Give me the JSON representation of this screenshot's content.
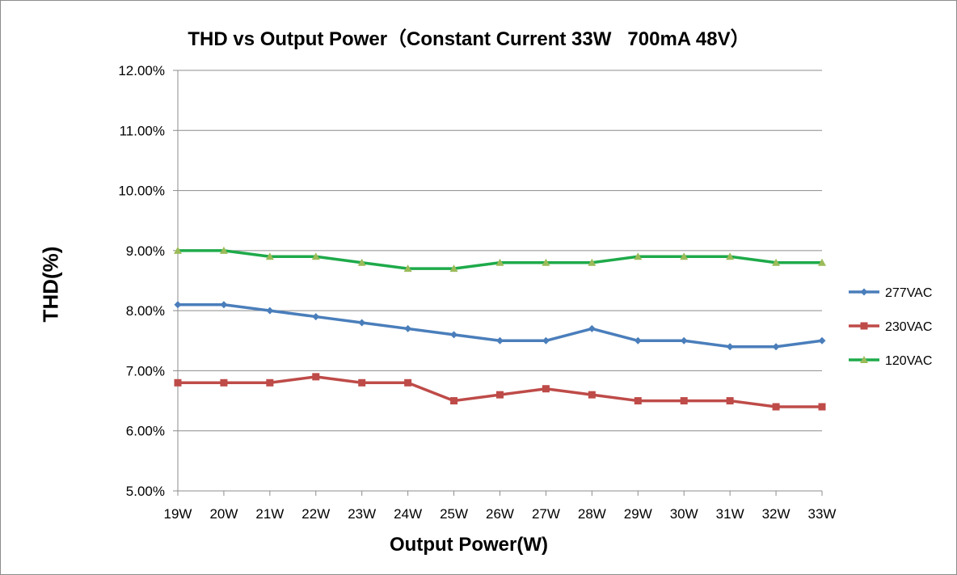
{
  "chart_data": {
    "type": "line",
    "title": "THD vs Output Power（Constant Current 33W   700mA 48V）",
    "xlabel": "Output Power(W)",
    "ylabel": "THD(%)",
    "categories": [
      "19W",
      "20W",
      "21W",
      "22W",
      "23W",
      "24W",
      "25W",
      "26W",
      "27W",
      "28W",
      "29W",
      "30W",
      "31W",
      "32W",
      "33W"
    ],
    "yticks": [
      "5.00%",
      "6.00%",
      "7.00%",
      "8.00%",
      "9.00%",
      "10.00%",
      "11.00%",
      "12.00%"
    ],
    "ylim": [
      5,
      12
    ],
    "grid": true,
    "legend_position": "right",
    "series": [
      {
        "name": "277VAC",
        "color": "#4a7ebb",
        "marker": "diamond",
        "values": [
          8.1,
          8.1,
          8.0,
          7.9,
          7.8,
          7.7,
          7.6,
          7.5,
          7.5,
          7.7,
          7.5,
          7.5,
          7.4,
          7.4,
          7.5
        ]
      },
      {
        "name": "230VAC",
        "color": "#be4b48",
        "marker": "square",
        "values": [
          6.8,
          6.8,
          6.8,
          6.9,
          6.8,
          6.8,
          6.5,
          6.6,
          6.7,
          6.6,
          6.5,
          6.5,
          6.5,
          6.4,
          6.4
        ]
      },
      {
        "name": "120VAC",
        "color": "#1eaa4a",
        "marker": "triangle",
        "marker_color": "#9bbb59",
        "values": [
          9.0,
          9.0,
          8.9,
          8.9,
          8.8,
          8.7,
          8.7,
          8.8,
          8.8,
          8.8,
          8.9,
          8.9,
          8.9,
          8.8,
          8.8
        ]
      }
    ]
  }
}
